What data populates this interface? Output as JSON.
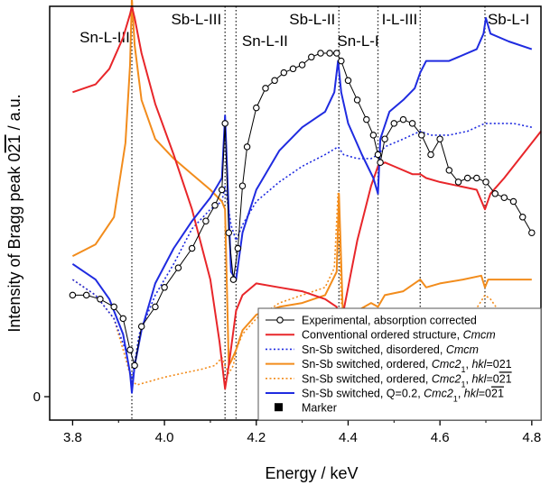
{
  "chart_data": {
    "type": "line",
    "xlabel": "Energy / keV",
    "ylabel": "Intensity of Bragg peak 02̅1 / a.u.",
    "ylabel_parts": {
      "prefix": "Intensity of Bragg peak 0",
      "over": "21",
      "suffix": " / a.u."
    },
    "xlim": [
      3.75,
      4.82
    ],
    "ylim": [
      -0.06,
      1.0
    ],
    "x_ticks": [
      "3.8",
      "4.0",
      "4.2",
      "4.4",
      "4.6",
      "4.8"
    ],
    "y_ticks": [
      "0"
    ],
    "edges": [
      {
        "label": "Sn-L-III",
        "energy": 3.929
      },
      {
        "label": "Sb-L-III",
        "energy": 4.132
      },
      {
        "label": "Sn-L-II",
        "energy": 4.156
      },
      {
        "label": "Sb-L-II",
        "energy": 4.38
      },
      {
        "label": "Sn-L-I",
        "energy": 4.465
      },
      {
        "label": "I-L-III",
        "energy": 4.557
      },
      {
        "label": "Sb-L-I",
        "energy": 4.698
      }
    ],
    "series": [
      {
        "key": "exp",
        "name": "Experimental, absorption corrected",
        "color": "#000000",
        "style": "solid",
        "markers": true,
        "x": [
          3.8,
          3.83,
          3.86,
          3.89,
          3.91,
          3.925,
          3.935,
          3.95,
          3.98,
          4.0,
          4.03,
          4.06,
          4.09,
          4.11,
          4.125,
          4.132,
          4.14,
          4.15,
          4.16,
          4.17,
          4.18,
          4.2,
          4.22,
          4.24,
          4.26,
          4.28,
          4.3,
          4.32,
          4.34,
          4.36,
          4.375,
          4.385,
          4.4,
          4.42,
          4.44,
          4.455,
          4.465,
          4.47,
          4.48,
          4.5,
          4.52,
          4.54,
          4.56,
          4.58,
          4.6,
          4.62,
          4.64,
          4.66,
          4.68,
          4.7,
          4.72,
          4.74,
          4.76,
          4.78,
          4.8
        ],
        "y": [
          0.26,
          0.26,
          0.25,
          0.23,
          0.2,
          0.12,
          0.08,
          0.18,
          0.23,
          0.28,
          0.33,
          0.38,
          0.45,
          0.49,
          0.53,
          0.7,
          0.42,
          0.3,
          0.38,
          0.54,
          0.64,
          0.74,
          0.79,
          0.81,
          0.83,
          0.84,
          0.85,
          0.87,
          0.88,
          0.88,
          0.88,
          0.86,
          0.81,
          0.76,
          0.71,
          0.67,
          0.62,
          0.6,
          0.66,
          0.7,
          0.71,
          0.7,
          0.67,
          0.62,
          0.66,
          0.58,
          0.55,
          0.56,
          0.56,
          0.55,
          0.52,
          0.51,
          0.5,
          0.46,
          0.42
        ]
      },
      {
        "key": "conv",
        "name": "Conventional ordered structure, Cmcm",
        "name_parts": [
          "Conventional ordered structure, ",
          "Cmcm"
        ],
        "color": "#e8262a",
        "style": "solid",
        "x": [
          3.8,
          3.85,
          3.88,
          3.91,
          3.925,
          3.929,
          3.935,
          3.95,
          3.98,
          4.02,
          4.06,
          4.1,
          4.12,
          4.132,
          4.14,
          4.156,
          4.17,
          4.2,
          4.25,
          4.3,
          4.35,
          4.375,
          4.38,
          4.39,
          4.42,
          4.45,
          4.465,
          4.48,
          4.5,
          4.54,
          4.557,
          4.57,
          4.6,
          4.64,
          4.68,
          4.698,
          4.71,
          4.74,
          4.78,
          4.82
        ],
        "y": [
          0.78,
          0.8,
          0.84,
          0.92,
          0.98,
          1.0,
          0.97,
          0.88,
          0.75,
          0.62,
          0.48,
          0.3,
          0.14,
          0.02,
          0.08,
          0.22,
          0.26,
          0.29,
          0.28,
          0.27,
          0.25,
          0.23,
          0.18,
          0.22,
          0.4,
          0.54,
          0.59,
          0.6,
          0.59,
          0.57,
          0.57,
          0.56,
          0.55,
          0.54,
          0.53,
          0.48,
          0.52,
          0.56,
          0.62,
          0.68
        ]
      },
      {
        "key": "dis",
        "name": "Sn-Sb switched, disordered, Cmcm",
        "name_parts": [
          "Sn-Sb switched, disordered, ",
          "Cmcm"
        ],
        "color": "#1f2be0",
        "style": "dotted",
        "x": [
          3.8,
          3.85,
          3.89,
          3.915,
          3.929,
          3.945,
          3.98,
          4.02,
          4.06,
          4.1,
          4.125,
          4.132,
          4.145,
          4.156,
          4.17,
          4.2,
          4.25,
          4.3,
          4.35,
          4.378,
          4.39,
          4.42,
          4.45,
          4.465,
          4.48,
          4.52,
          4.557,
          4.58,
          4.62,
          4.66,
          4.698,
          4.72,
          4.76,
          4.8
        ],
        "y": [
          0.3,
          0.26,
          0.2,
          0.12,
          0.04,
          0.16,
          0.26,
          0.34,
          0.43,
          0.48,
          0.5,
          0.54,
          0.44,
          0.4,
          0.44,
          0.5,
          0.55,
          0.59,
          0.62,
          0.64,
          0.62,
          0.61,
          0.61,
          0.62,
          0.64,
          0.66,
          0.68,
          0.67,
          0.67,
          0.68,
          0.7,
          0.7,
          0.7,
          0.69
        ]
      },
      {
        "key": "ord021",
        "name": "Sn-Sb switched, ordered, Cmc21, hkl=021",
        "name_parts": [
          "Sn-Sb switched, ordered, ",
          "Cmc2",
          "1",
          ", ",
          "hkl",
          "=021"
        ],
        "color": "#f28c1c",
        "style": "solid",
        "x": [
          3.8,
          3.85,
          3.89,
          3.915,
          3.925,
          3.929,
          3.935,
          3.95,
          3.98,
          4.02,
          4.06,
          4.1,
          4.125,
          4.132,
          4.14,
          4.145,
          4.156,
          4.17,
          4.2,
          4.25,
          4.3,
          4.35,
          4.375,
          4.38,
          4.39,
          4.42,
          4.45,
          4.465,
          4.48,
          4.52,
          4.557,
          4.57,
          4.6,
          4.65,
          4.69,
          4.698,
          4.705,
          4.73,
          4.76,
          4.8
        ],
        "y": [
          0.36,
          0.39,
          0.46,
          0.65,
          0.85,
          1.02,
          0.9,
          0.76,
          0.66,
          0.61,
          0.57,
          0.53,
          0.5,
          0.48,
          0.08,
          0.09,
          0.12,
          0.17,
          0.21,
          0.23,
          0.24,
          0.26,
          0.32,
          0.52,
          0.16,
          0.22,
          0.24,
          0.23,
          0.26,
          0.27,
          0.3,
          0.28,
          0.29,
          0.3,
          0.31,
          0.28,
          0.3,
          0.3,
          0.3,
          0.3
        ]
      },
      {
        "key": "ord0-21",
        "name": "Sn-Sb switched, ordered, Cmc21, hkl=0-21",
        "name_parts": [
          "Sn-Sb switched, ordered, ",
          "Cmc2",
          "1",
          ", ",
          "hkl",
          "=0",
          "21"
        ],
        "color": "#f28c1c",
        "style": "dotted",
        "x": [
          3.8,
          3.85,
          3.89,
          3.915,
          3.929,
          3.94,
          3.97,
          4.0,
          4.04,
          4.08,
          4.11,
          4.125,
          4.132,
          4.14,
          4.15,
          4.156,
          4.17,
          4.2,
          4.25,
          4.3,
          4.35,
          4.37,
          4.378,
          4.385,
          4.4,
          4.43,
          4.46,
          4.48,
          4.52,
          4.557,
          4.58,
          4.62,
          4.66,
          4.698,
          4.71,
          4.74,
          4.78,
          4.82
        ],
        "y": [
          0.3,
          0.26,
          0.2,
          0.1,
          0.04,
          0.03,
          0.04,
          0.05,
          0.06,
          0.07,
          0.08,
          0.1,
          0.08,
          0.06,
          0.08,
          0.12,
          0.16,
          0.2,
          0.24,
          0.26,
          0.28,
          0.33,
          0.52,
          0.24,
          0.22,
          0.16,
          0.14,
          0.15,
          0.17,
          0.22,
          0.17,
          0.16,
          0.19,
          0.26,
          0.25,
          0.2,
          0.18,
          0.16
        ]
      },
      {
        "key": "q02",
        "name": "Sn-Sb switched, Q=0.2, Cmc21, hkl=0-21",
        "name_parts": [
          "Sn-Sb switched, Q=0.2, ",
          "Cmc2",
          "1",
          ", ",
          "hkl",
          "=0",
          "21"
        ],
        "color": "#1f2be0",
        "style": "solid",
        "x": [
          3.8,
          3.85,
          3.88,
          3.91,
          3.925,
          3.929,
          3.935,
          3.95,
          3.98,
          4.02,
          4.06,
          4.1,
          4.125,
          4.132,
          4.145,
          4.156,
          4.17,
          4.2,
          4.25,
          4.3,
          4.35,
          4.37,
          4.378,
          4.385,
          4.4,
          4.43,
          4.455,
          4.465,
          4.47,
          4.49,
          4.52,
          4.545,
          4.557,
          4.57,
          4.62,
          4.68,
          4.695,
          4.7,
          4.71,
          4.75,
          4.8
        ],
        "y": [
          0.34,
          0.3,
          0.25,
          0.16,
          0.06,
          0.01,
          0.08,
          0.17,
          0.29,
          0.38,
          0.45,
          0.51,
          0.56,
          0.72,
          0.32,
          0.3,
          0.42,
          0.53,
          0.63,
          0.69,
          0.73,
          0.78,
          0.86,
          0.78,
          0.7,
          0.62,
          0.56,
          0.52,
          0.66,
          0.73,
          0.76,
          0.79,
          0.83,
          0.86,
          0.86,
          0.89,
          0.93,
          0.97,
          0.93,
          0.91,
          0.89
        ]
      },
      {
        "key": "marker",
        "name": "Marker",
        "color": "#000000",
        "style": "marker"
      }
    ],
    "legend_position": "lower-right",
    "grid": false
  }
}
